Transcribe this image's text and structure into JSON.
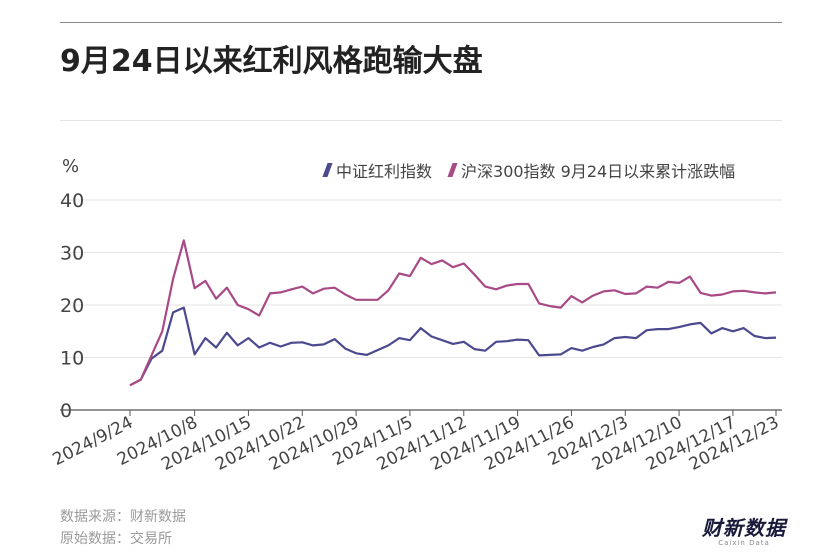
{
  "title": "9月24日以来红利风格跑输大盘",
  "footer": {
    "source": "数据来源：财新数据",
    "original": "原始数据：交易所"
  },
  "logo": {
    "main": "财新数据",
    "sub": "Caixin Data"
  },
  "colors": {
    "dividend": "#4b4a8f",
    "hs300": "#a84a86",
    "grid": "#e6e6e6",
    "axis": "#555555"
  },
  "chart_data": {
    "type": "line",
    "unit_label": "%",
    "ylim": [
      0,
      40
    ],
    "yticks": [
      0,
      10,
      20,
      30,
      40
    ],
    "grid": true,
    "legend_position": "top-right",
    "xtick_labels": [
      "2024/9/24",
      "2024/10/8",
      "2024/10/15",
      "2024/10/22",
      "2024/10/29",
      "2024/11/5",
      "2024/11/12",
      "2024/11/19",
      "2024/11/26",
      "2024/12/3",
      "2024/12/10",
      "2024/12/17",
      "2024/12/23"
    ],
    "xtick_index": [
      0,
      6,
      11,
      16,
      21,
      26,
      31,
      36,
      41,
      46,
      51,
      56,
      60
    ],
    "x": [
      "2024/9/24",
      "2024/9/25",
      "2024/9/26",
      "2024/9/27",
      "2024/9/30",
      "2024/10/8",
      "2024/10/9",
      "2024/10/10",
      "2024/10/11",
      "2024/10/14",
      "2024/10/15",
      "2024/10/16",
      "2024/10/17",
      "2024/10/18",
      "2024/10/21",
      "2024/10/22",
      "2024/10/23",
      "2024/10/24",
      "2024/10/25",
      "2024/10/28",
      "2024/10/29",
      "2024/10/30",
      "2024/10/31",
      "2024/11/1",
      "2024/11/4",
      "2024/11/5",
      "2024/11/6",
      "2024/11/7",
      "2024/11/8",
      "2024/11/11",
      "2024/11/12",
      "2024/11/13",
      "2024/11/14",
      "2024/11/15",
      "2024/11/18",
      "2024/11/19",
      "2024/11/20",
      "2024/11/21",
      "2024/11/22",
      "2024/11/25",
      "2024/11/26",
      "2024/11/27",
      "2024/11/28",
      "2024/11/29",
      "2024/12/2",
      "2024/12/3",
      "2024/12/4",
      "2024/12/5",
      "2024/12/6",
      "2024/12/9",
      "2024/12/10",
      "2024/12/11",
      "2024/12/12",
      "2024/12/13",
      "2024/12/16",
      "2024/12/17",
      "2024/12/18",
      "2024/12/19",
      "2024/12/20",
      "2024/12/23",
      "2024/12/24"
    ],
    "series": [
      {
        "name": "中证红利指数",
        "values": [
          4.7,
          5.8,
          9.8,
          11.3,
          18.6,
          19.5,
          10.6,
          13.7,
          11.9,
          14.7,
          12.3,
          13.7,
          11.9,
          12.8,
          12.1,
          12.8,
          12.9,
          12.3,
          12.5,
          13.5,
          11.7,
          10.8,
          10.5,
          11.4,
          12.3,
          13.7,
          13.3,
          15.6,
          14.0,
          13.3,
          12.6,
          13.0,
          11.6,
          11.3,
          13.0,
          13.1,
          13.4,
          13.3,
          10.4,
          10.5,
          10.6,
          11.8,
          11.3,
          12.0,
          12.5,
          13.7,
          13.9,
          13.7,
          15.2,
          15.4,
          15.4,
          15.8,
          16.3,
          16.6,
          14.6,
          15.6,
          15.0,
          15.6,
          14.1,
          13.7,
          13.8
        ]
      },
      {
        "name": "沪深300指数 9月24日以来累计涨跌幅",
        "values": [
          4.7,
          5.8,
          10.4,
          15.0,
          25.0,
          32.3,
          23.2,
          24.6,
          21.2,
          23.3,
          20.0,
          19.2,
          18.0,
          22.2,
          22.4,
          23.0,
          23.5,
          22.2,
          23.1,
          23.3,
          22.0,
          21.0,
          21.0,
          21.0,
          22.8,
          26.0,
          25.5,
          29.0,
          27.8,
          28.5,
          27.2,
          27.9,
          25.8,
          23.5,
          23.0,
          23.7,
          24.0,
          24.0,
          20.3,
          19.8,
          19.5,
          21.7,
          20.5,
          21.8,
          22.6,
          22.8,
          22.1,
          22.2,
          23.5,
          23.3,
          24.4,
          24.2,
          25.4,
          22.3,
          21.8,
          22.0,
          22.6,
          22.7,
          22.4,
          22.2,
          22.4
        ]
      }
    ]
  }
}
